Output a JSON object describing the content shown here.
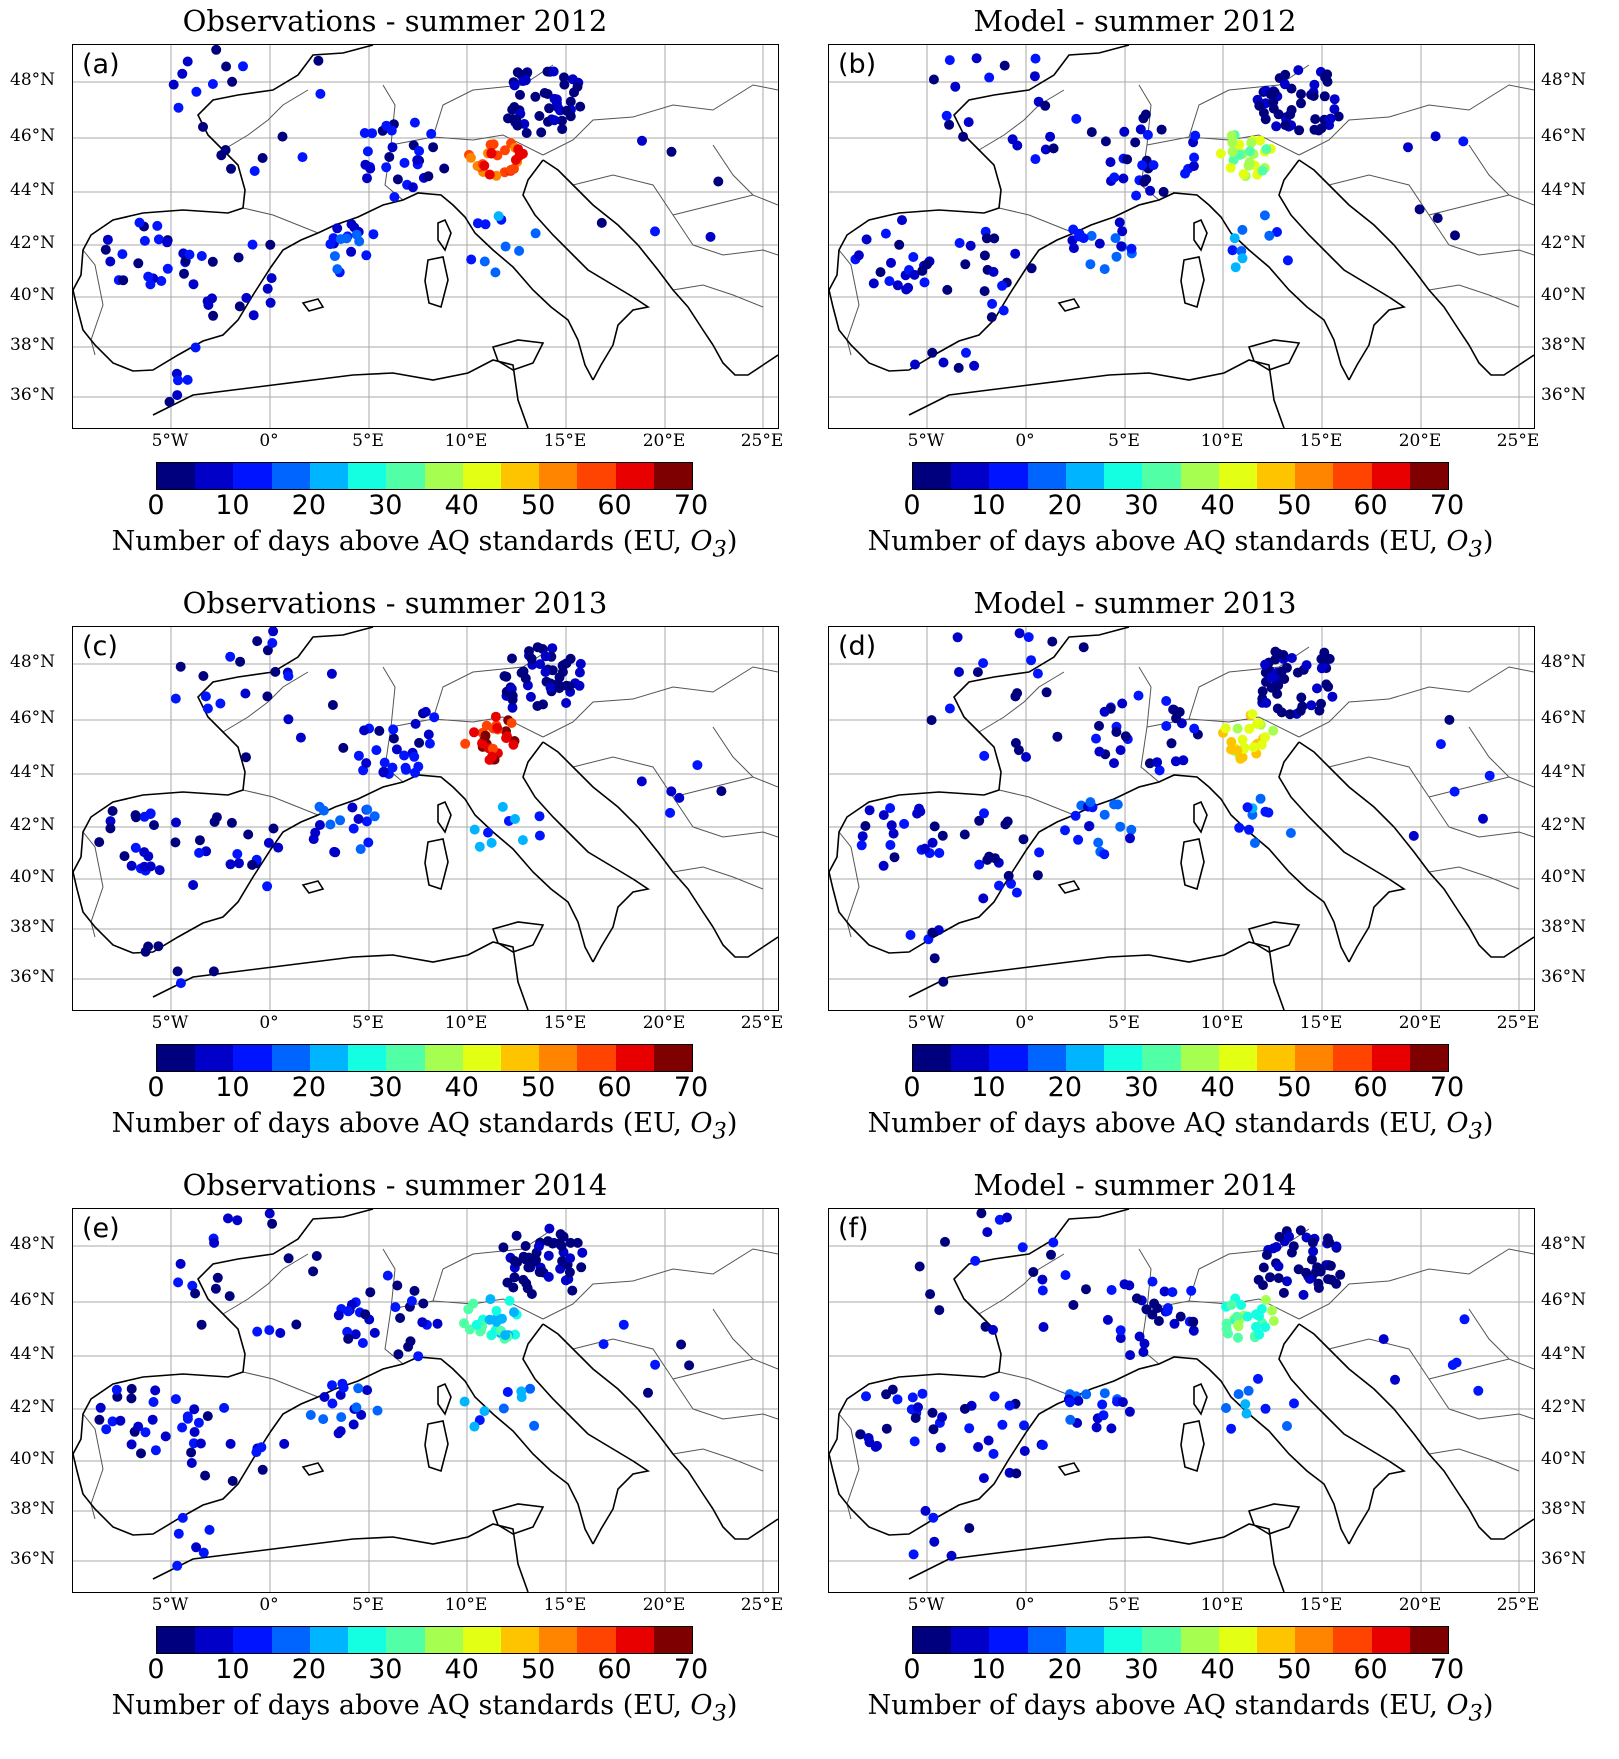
{
  "colorbar": {
    "colors": [
      "#00007f",
      "#0000c8",
      "#0014ff",
      "#0064ff",
      "#00b4ff",
      "#14ffe2",
      "#50ffa6",
      "#a6ff50",
      "#e2ff14",
      "#ffc400",
      "#ff8400",
      "#ff4300",
      "#e80000",
      "#7f0000"
    ],
    "ticks": [
      "0",
      "10",
      "20",
      "30",
      "40",
      "50",
      "60",
      "70"
    ],
    "label_prefix": "Number of days above AQ standards (EU, ",
    "label_var": "O",
    "label_sub": "3",
    "label_suffix": ")"
  },
  "lat_labels": [
    "48°N",
    "46°N",
    "44°N",
    "42°N",
    "40°N",
    "38°N",
    "36°N"
  ],
  "lon_labels": [
    "5°W",
    "0°",
    "5°E",
    "10°E",
    "15°E",
    "20°E",
    "25°E"
  ],
  "panels": [
    {
      "id": "a",
      "letter": "(a)",
      "title": "Observations - summer 2012",
      "side": "left"
    },
    {
      "id": "b",
      "letter": "(b)",
      "title": "Model - summer 2012",
      "side": "right"
    },
    {
      "id": "c",
      "letter": "(c)",
      "title": "Observations - summer 2013",
      "side": "left"
    },
    {
      "id": "d",
      "letter": "(d)",
      "title": "Model - summer 2013",
      "side": "right"
    },
    {
      "id": "e",
      "letter": "(e)",
      "title": "Observations - summer 2014",
      "side": "left"
    },
    {
      "id": "f",
      "letter": "(f)",
      "title": "Model - summer 2014",
      "side": "right"
    }
  ]
}
